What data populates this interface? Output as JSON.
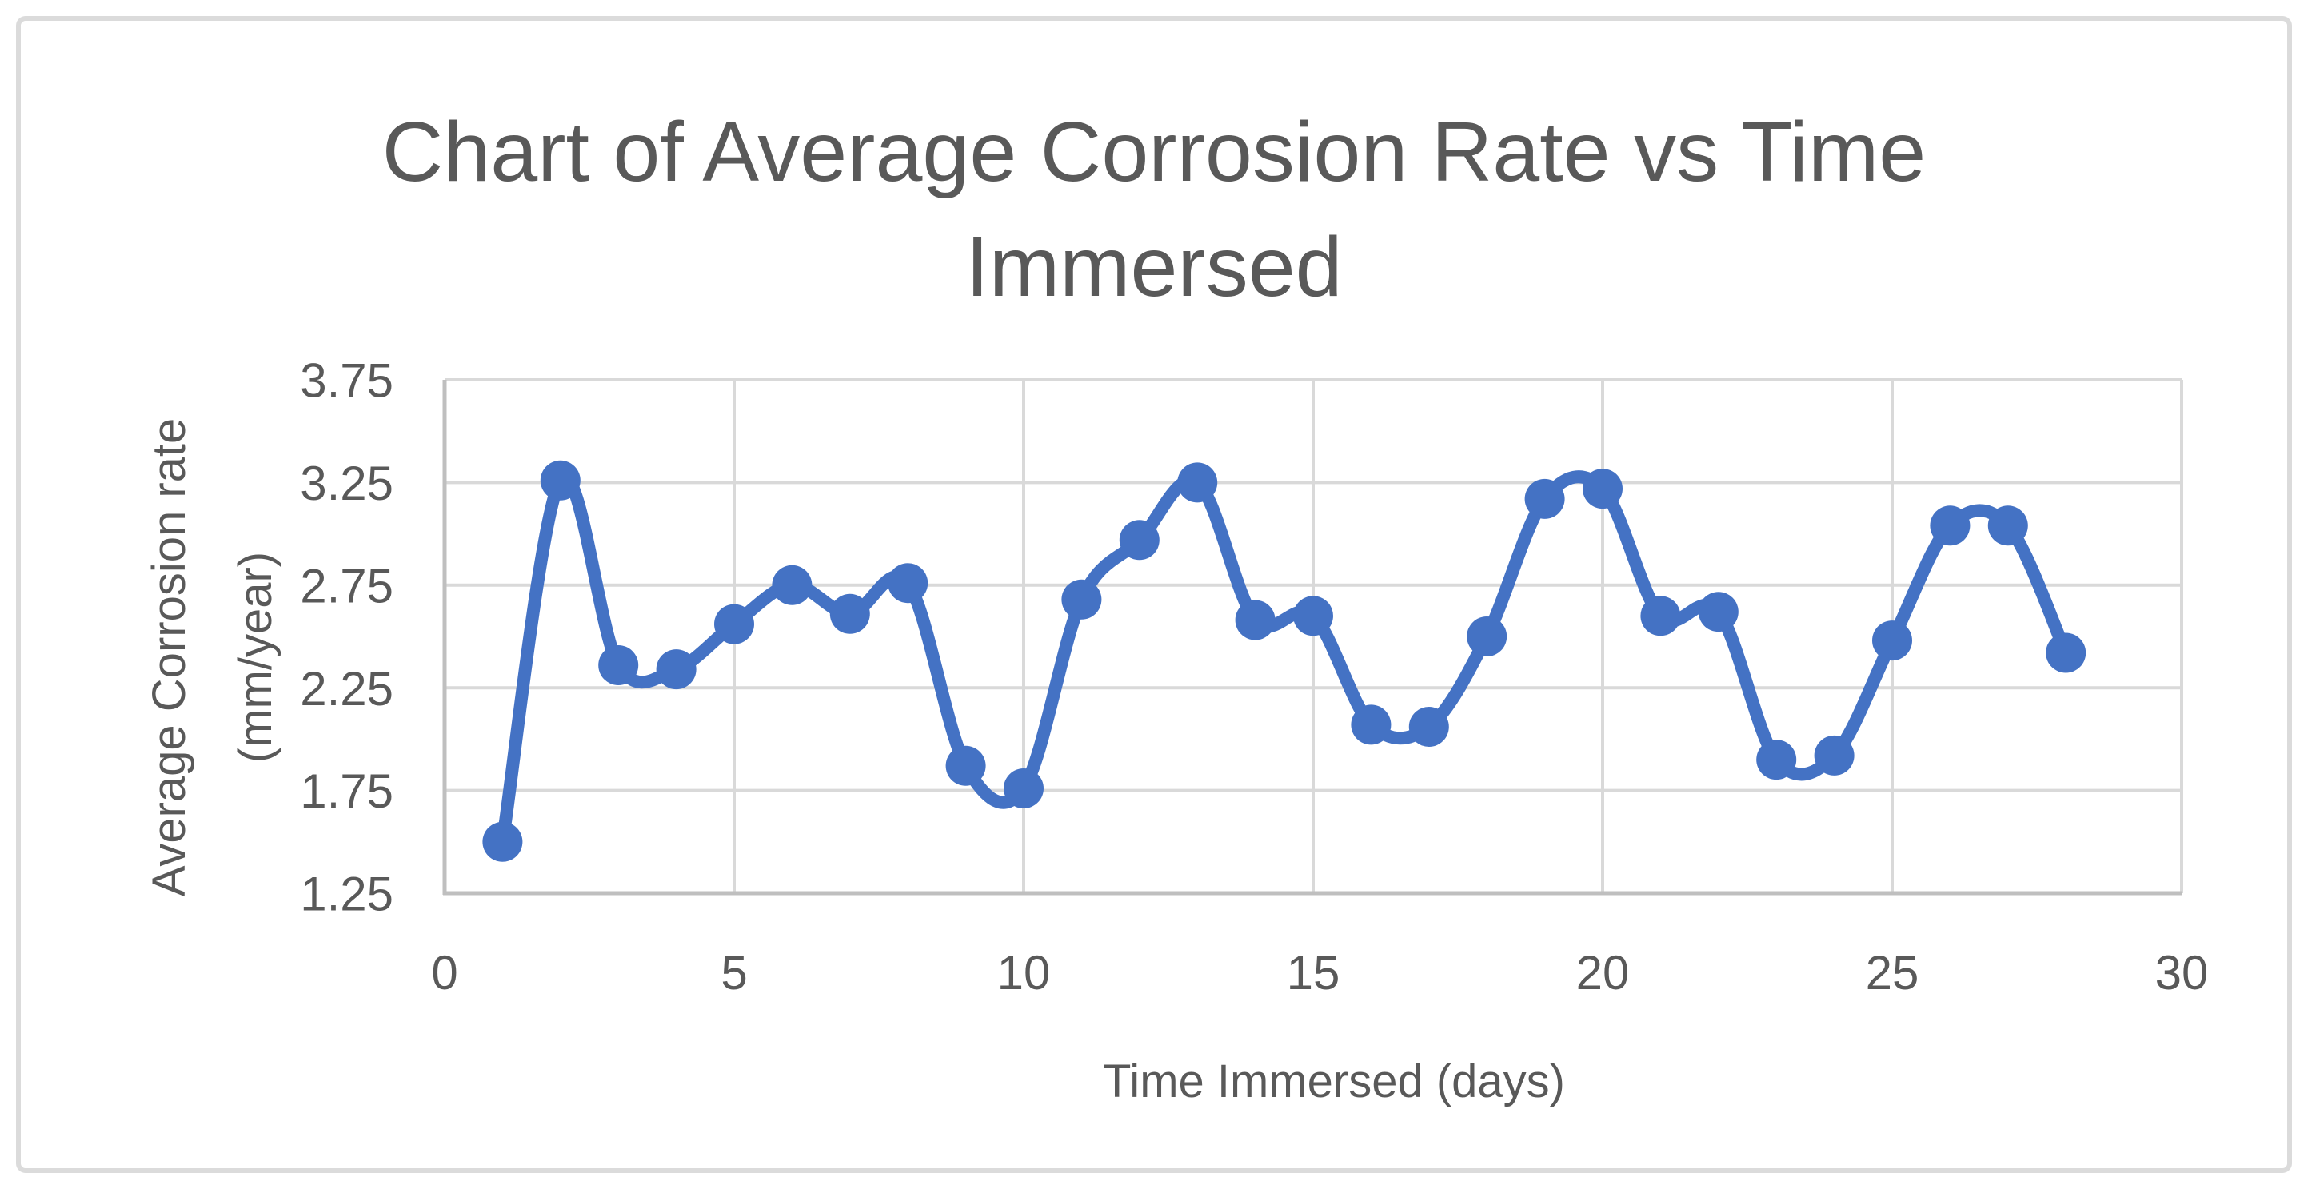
{
  "chart_data": {
    "type": "line",
    "title": "Chart of Average Corrosion Rate vs Time Immersed",
    "xlabel": "Time Immersed (days)",
    "ylabel": "Average Corrosion rate (mm/year)",
    "series": [
      {
        "name": "Average Corrosion rate",
        "x": [
          1,
          2,
          3,
          4,
          5,
          6,
          7,
          8,
          9,
          10,
          11,
          12,
          13,
          14,
          15,
          16,
          17,
          18,
          19,
          20,
          21,
          22,
          23,
          24,
          25,
          26,
          27,
          28
        ],
        "values": [
          1.5,
          3.26,
          2.36,
          2.34,
          2.56,
          2.75,
          2.61,
          2.76,
          1.87,
          1.76,
          2.68,
          2.97,
          3.25,
          2.58,
          2.6,
          2.07,
          2.06,
          2.5,
          3.17,
          3.22,
          2.6,
          2.62,
          1.9,
          1.92,
          2.48,
          3.04,
          3.04,
          2.42
        ],
        "color": "#4472C4",
        "marker": "circle",
        "smoothed": true
      }
    ],
    "xlim": [
      0,
      30
    ],
    "ylim": [
      1.25,
      3.75
    ],
    "x_ticks": [
      0,
      5,
      10,
      15,
      20,
      25,
      30
    ],
    "y_ticks": [
      1.25,
      1.75,
      2.25,
      2.75,
      3.25,
      3.75
    ],
    "grid": true,
    "legend_position": "none",
    "styles": {
      "text_color": "#595959",
      "gridline_color": "#D9D9D9",
      "axis_color": "#BFBFBF",
      "frame_border_color": "#DBDBDB",
      "background": "#ffffff"
    }
  }
}
